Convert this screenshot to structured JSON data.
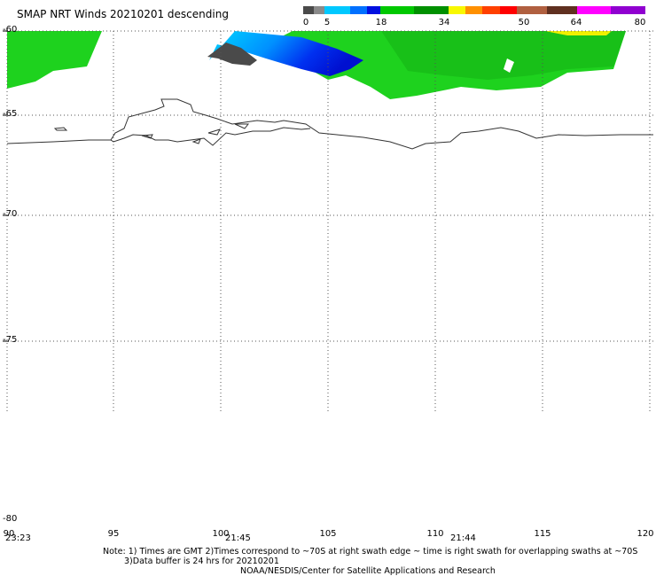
{
  "title": "SMAP NRT Winds  20210201 descending",
  "colorbar": {
    "segments": [
      {
        "color": "#4a4a4a",
        "stop": 0
      },
      {
        "color": "#8a8a8a",
        "stop": 0
      },
      {
        "color": "#00c8ff",
        "stop": 5
      },
      {
        "color": "#0070ff",
        "stop": 11
      },
      {
        "color": "#0010e0",
        "stop": 15
      },
      {
        "color": "#00c800",
        "stop": 18
      },
      {
        "color": "#009000",
        "stop": 26
      },
      {
        "color": "#f8f800",
        "stop": 34
      },
      {
        "color": "#ff9000",
        "stop": 38
      },
      {
        "color": "#ff4000",
        "stop": 42
      },
      {
        "color": "#ff0000",
        "stop": 46
      },
      {
        "color": "#b06040",
        "stop": 50
      },
      {
        "color": "#603020",
        "stop": 57
      },
      {
        "color": "#ff00ff",
        "stop": 64
      },
      {
        "color": "#9000d0",
        "stop": 72
      }
    ],
    "labels": [
      "0",
      "5",
      "18",
      "34",
      "50",
      "64",
      "80"
    ]
  },
  "latitudes": [
    "-60",
    "-65",
    "-70",
    "-75",
    "-80"
  ],
  "longitudes": [
    "90",
    "95",
    "100",
    "105",
    "110",
    "115",
    "120"
  ],
  "times": [
    "23:23",
    "21:45",
    "21:44"
  ],
  "notes": [
    "Note: 1) Times are GMT 2)Times correspond to ~70S at right swath edge ~ time is right swath for overlapping swaths at ~70S",
    "3)Data buffer is 24 hrs for 20210201",
    "NOAA/NESDIS/Center for Satellite Applications and Research"
  ]
}
